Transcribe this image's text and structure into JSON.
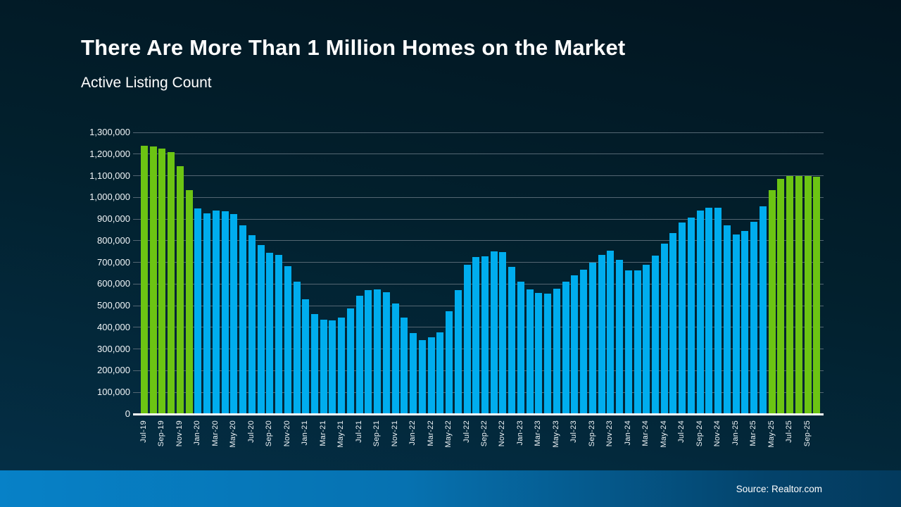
{
  "header": {
    "title": "There Are More Than 1 Million Homes on the Market",
    "subtitle": "Active Listing Count"
  },
  "footer": {
    "source": "Source: Realtor.com"
  },
  "colors": {
    "bar_blue": "#00adee",
    "bar_green": "#6cc413",
    "gridline": "#546672",
    "baseline": "#ffffff",
    "background_top": "#021520",
    "background_bottom": "#043048",
    "footer_left": "#0781c7",
    "footer_right": "#033a5d"
  },
  "chart_data": {
    "type": "bar",
    "title": "There Are More Than 1 Million Homes on the Market",
    "subtitle": "Active Listing Count",
    "xlabel": "",
    "ylabel": "",
    "ylim": [
      0,
      1300000
    ],
    "ytick_step": 100000,
    "grid": true,
    "x_tick_every": 2,
    "highlight_threshold": 1000000,
    "highlight_rule": "bars at or above 1,000,000 are green, others blue",
    "categories": [
      "Jul-19",
      "Aug-19",
      "Sep-19",
      "Oct-19",
      "Nov-19",
      "Dec-19",
      "Jan-20",
      "Feb-20",
      "Mar-20",
      "Apr-20",
      "May-20",
      "Jun-20",
      "Jul-20",
      "Aug-20",
      "Sep-20",
      "Oct-20",
      "Nov-20",
      "Dec-20",
      "Jan-21",
      "Feb-21",
      "Mar-21",
      "Apr-21",
      "May-21",
      "Jun-21",
      "Jul-21",
      "Aug-21",
      "Sep-21",
      "Oct-21",
      "Nov-21",
      "Dec-21",
      "Jan-22",
      "Feb-22",
      "Mar-22",
      "Apr-22",
      "May-22",
      "Jun-22",
      "Jul-22",
      "Aug-22",
      "Sep-22",
      "Oct-22",
      "Nov-22",
      "Dec-22",
      "Jan-23",
      "Feb-23",
      "Mar-23",
      "Apr-23",
      "May-23",
      "Jun-23",
      "Jul-23",
      "Aug-23",
      "Sep-23",
      "Oct-23",
      "Nov-23",
      "Dec-23",
      "Jan-24",
      "Feb-24",
      "Mar-24",
      "Apr-24",
      "May-24",
      "Jun-24",
      "Jul-24",
      "Aug-24",
      "Sep-24",
      "Oct-24",
      "Nov-24",
      "Dec-24",
      "Jan-25",
      "Feb-25",
      "Mar-25",
      "Apr-25",
      "May-25",
      "Jun-25",
      "Jul-25",
      "Aug-25",
      "Sep-25",
      "Oct-25"
    ],
    "values": [
      1238000,
      1236000,
      1226000,
      1208000,
      1144000,
      1035000,
      948000,
      926000,
      938000,
      937000,
      924000,
      872000,
      825000,
      779000,
      744000,
      733000,
      682000,
      612000,
      530000,
      462000,
      437000,
      432000,
      445000,
      488000,
      547000,
      573000,
      576000,
      563000,
      511000,
      444000,
      375000,
      342000,
      353000,
      377000,
      473000,
      573000,
      688000,
      725000,
      728000,
      750000,
      746000,
      679000,
      612000,
      576000,
      558000,
      557000,
      579000,
      610000,
      641000,
      666000,
      698000,
      735000,
      753000,
      712000,
      663000,
      662000,
      690000,
      731000,
      788000,
      836000,
      884000,
      906000,
      940000,
      952000,
      952000,
      872000,
      828000,
      845000,
      888000,
      958000,
      1035000,
      1085000,
      1100000,
      1099000,
      1097000,
      1095000
    ]
  }
}
